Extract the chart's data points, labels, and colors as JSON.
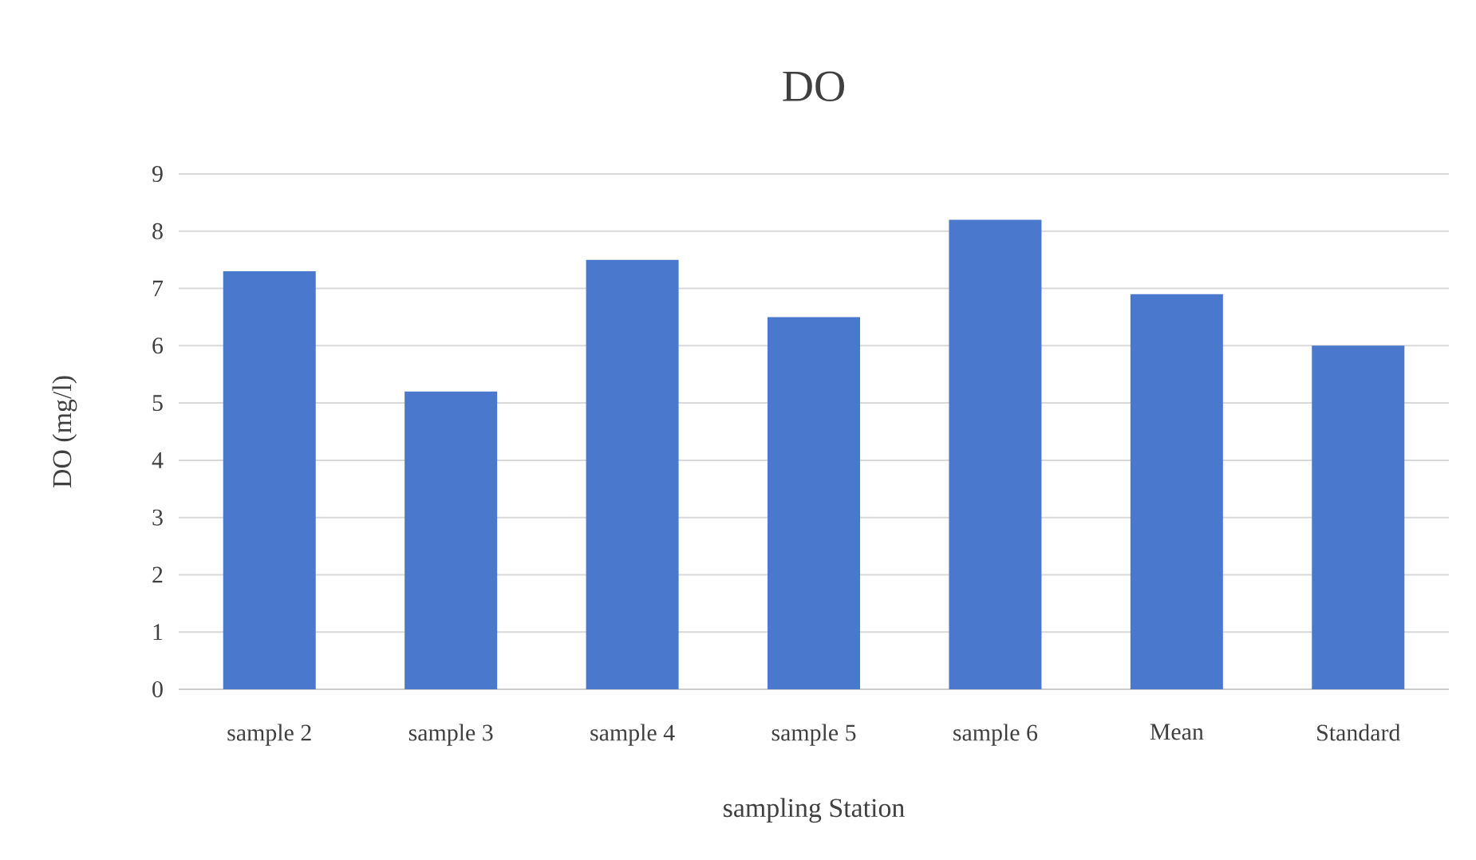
{
  "chart_data": {
    "type": "bar",
    "title": "DO",
    "xlabel": "sampling Station",
    "ylabel": "DO (mg/l)",
    "categories": [
      "sample 2",
      "sample 3",
      "sample 4",
      "sample 5",
      "sample 6",
      "Mean",
      "Standard"
    ],
    "values": [
      7.3,
      5.2,
      7.5,
      6.5,
      8.2,
      6.9,
      6.0
    ],
    "color": "#4a78cc",
    "ylim": [
      0,
      9
    ],
    "yticks": [
      0,
      1,
      2,
      3,
      4,
      5,
      6,
      7,
      8,
      9
    ],
    "grid": "y"
  }
}
